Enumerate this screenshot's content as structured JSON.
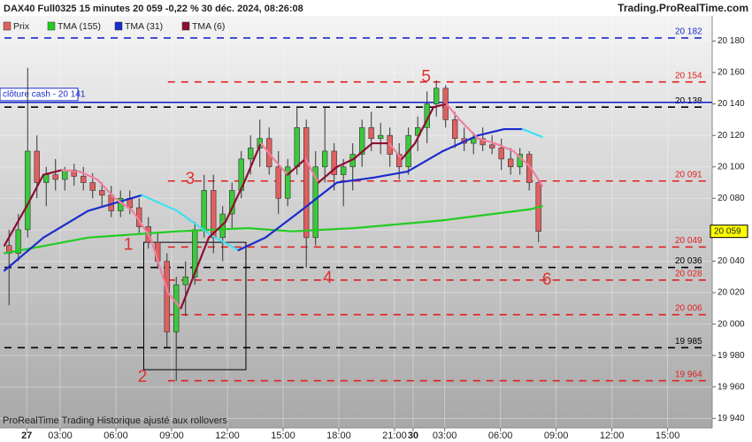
{
  "header": {
    "title": "DAX40 Full0325 15 minutes 20 059 -0,22 % 30 déc. 2024, 08:26:08",
    "brand": "Trading.ProRealTime.com"
  },
  "footer": "ProRealTime Trading Historique ajusté aux rollovers",
  "chart_data": {
    "type": "candlestick",
    "xlim": [
      0,
      38.1
    ],
    "ylim": [
      19934,
      20196
    ],
    "xticks": [
      {
        "value": 1.2,
        "label": "27"
      },
      {
        "value": 3,
        "label": "03:00"
      },
      {
        "value": 6,
        "label": "06:00"
      },
      {
        "value": 9,
        "label": "09:00"
      },
      {
        "value": 12,
        "label": "12:00"
      },
      {
        "value": 15,
        "label": "15:00"
      },
      {
        "value": 18,
        "label": "18:00"
      },
      {
        "value": 21,
        "label": "21:00"
      },
      {
        "value": 22,
        "label": "30"
      },
      {
        "value": 23.7,
        "label": "03:00"
      },
      {
        "value": 26.7,
        "label": "06:00"
      },
      {
        "value": 29.7,
        "label": "09:00"
      },
      {
        "value": 32.7,
        "label": "12:00"
      },
      {
        "value": 35.7,
        "label": "15:00"
      }
    ],
    "yticks": [
      {
        "value": 19940,
        "label": "19 940"
      },
      {
        "value": 19960,
        "label": "19 960"
      },
      {
        "value": 19980,
        "label": "19 980"
      },
      {
        "value": 20000,
        "label": "20 000"
      },
      {
        "value": 20020,
        "label": "20 020"
      },
      {
        "value": 20040,
        "label": "20 040"
      },
      {
        "value": 20060,
        "label": "20 060"
      },
      {
        "value": 20080,
        "label": "20 080"
      },
      {
        "value": 20100,
        "label": "20 100"
      },
      {
        "value": 20120,
        "label": "20 120"
      },
      {
        "value": 20140,
        "label": "20 140"
      },
      {
        "value": 20160,
        "label": "20 160"
      },
      {
        "value": 20180,
        "label": "20 180"
      }
    ],
    "grid": true,
    "candles": {
      "name": "Prix",
      "up_color": "#3cc83c",
      "down_color": "#e06060",
      "x": [
        0.25,
        0.75,
        1.25,
        1.75,
        2.25,
        2.75,
        3.25,
        3.75,
        4.25,
        4.75,
        5.25,
        5.75,
        6.25,
        6.75,
        7.25,
        7.75,
        8.25,
        8.75,
        9.25,
        9.75,
        10.25,
        10.75,
        11.25,
        11.75,
        12.25,
        12.75,
        13.25,
        13.75,
        14.25,
        14.75,
        15.25,
        15.75,
        16.25,
        16.75,
        17.25,
        17.75,
        18.25,
        18.75,
        19.25,
        19.75,
        20.25,
        20.75,
        21.25,
        21.75,
        22.25,
        22.75,
        23.25,
        23.75,
        24.25,
        24.75,
        25.25,
        25.75,
        26.25,
        26.75,
        27.25,
        27.75,
        28.25,
        28.75
      ],
      "open": [
        20050,
        20045,
        20060,
        20110,
        20090,
        20095,
        20092,
        20098,
        20094,
        20090,
        20085,
        20082,
        20072,
        20080,
        20074,
        20062,
        20052,
        20040,
        19995,
        20025,
        20030,
        20060,
        20085,
        20055,
        20070,
        20085,
        20105,
        20112,
        20118,
        20100,
        20080,
        20100,
        20125,
        20055,
        20100,
        20110,
        20095,
        20100,
        20108,
        20125,
        20118,
        20120,
        20108,
        20100,
        20120,
        20125,
        20140,
        20150,
        20130,
        20118,
        20115,
        20118,
        20114,
        20112,
        20105,
        20100,
        20108,
        20090
      ],
      "high": [
        20060,
        20070,
        20163,
        20120,
        20100,
        20105,
        20100,
        20102,
        20100,
        20096,
        20090,
        20088,
        20085,
        20085,
        20080,
        20068,
        20058,
        20045,
        20030,
        20040,
        20065,
        20095,
        20095,
        20075,
        20090,
        20110,
        20120,
        20130,
        20125,
        20110,
        20105,
        20138,
        20130,
        20110,
        20138,
        20115,
        20105,
        20115,
        20130,
        20135,
        20128,
        20125,
        20115,
        20125,
        20132,
        20148,
        20155,
        20152,
        20135,
        20125,
        20122,
        20125,
        20120,
        20118,
        20112,
        20112,
        20110,
        20092
      ],
      "low": [
        20012,
        20040,
        20055,
        20080,
        20075,
        20085,
        20085,
        20088,
        20085,
        20080,
        20075,
        20068,
        20068,
        20070,
        20058,
        20048,
        20035,
        19985,
        19964,
        20005,
        20025,
        20055,
        20045,
        20040,
        20060,
        20080,
        20095,
        20100,
        20095,
        20070,
        20075,
        20095,
        20036,
        20050,
        20090,
        20085,
        20075,
        20085,
        20100,
        20110,
        20108,
        20100,
        20092,
        20095,
        20110,
        20115,
        20132,
        20125,
        20112,
        20110,
        20108,
        20110,
        20108,
        20098,
        20095,
        20095,
        20085,
        20052
      ],
      "close": [
        20045,
        20060,
        20110,
        20090,
        20095,
        20092,
        20098,
        20094,
        20090,
        20085,
        20082,
        20072,
        20080,
        20074,
        20062,
        20052,
        20040,
        19995,
        20025,
        20030,
        20060,
        20085,
        20055,
        20070,
        20085,
        20105,
        20112,
        20118,
        20100,
        20080,
        20100,
        20125,
        20055,
        20100,
        20110,
        20095,
        20100,
        20108,
        20125,
        20118,
        20120,
        20108,
        20100,
        20120,
        20125,
        20140,
        20150,
        20130,
        20118,
        20115,
        20118,
        20114,
        20112,
        20105,
        20100,
        20108,
        20090,
        20059
      ]
    },
    "series": [
      {
        "name": "TMA (155)",
        "color": "#22cc22",
        "falling_color": "#22cc22",
        "x": [
          0,
          4.5,
          9.3,
          13.1,
          15.5,
          18.8,
          23.6,
          28.3,
          28.95
        ],
        "values": [
          20045,
          20055,
          20059,
          20061,
          20059,
          20061,
          20066,
          20073,
          20075
        ]
      },
      {
        "name": "TMA (31)",
        "color": "#1a2ccc",
        "falling_color": "#40e0f0",
        "x": [
          0,
          2.1,
          4.5,
          7.4,
          9.3,
          11.2,
          12.6,
          14.05,
          15.95,
          17.9,
          19.8,
          21.7,
          23.6,
          25.5,
          26.9,
          27.9,
          28.95
        ],
        "values": [
          20034,
          20055,
          20072,
          20082,
          20072,
          20056,
          20047,
          20055,
          20072,
          20090,
          20093,
          20097,
          20110,
          20120,
          20124,
          20124,
          20119
        ]
      },
      {
        "name": "TMA (6)",
        "color": "#8b1030",
        "falling_color": "#f080a0",
        "x": [
          0,
          1.2,
          2.1,
          3.1,
          4.05,
          5,
          5.95,
          6.9,
          7.86,
          8.8,
          9.5,
          10,
          11,
          11.9,
          12.9,
          13.8,
          14.5,
          15.24,
          16.2,
          16.9,
          17.9,
          18.8,
          19.8,
          20.7,
          21.4,
          22.1,
          23.1,
          23.8,
          24.5,
          25.5,
          26.4,
          27.4,
          28.3,
          28.95
        ],
        "values": [
          20050,
          20075,
          20095,
          20098,
          20097,
          20092,
          20080,
          20072,
          20055,
          20020,
          20010,
          20025,
          20055,
          20065,
          20090,
          20115,
          20105,
          20095,
          20105,
          20090,
          20100,
          20105,
          20115,
          20115,
          20105,
          20115,
          20138,
          20140,
          20130,
          20118,
          20115,
          20110,
          20100,
          20088
        ]
      }
    ],
    "levels": [
      {
        "value": 20182,
        "label": "20 182",
        "color": "#1a2ccc",
        "x_start": 0
      },
      {
        "value": 20154,
        "label": "20 154",
        "color": "#e02020",
        "x_start": 8.8
      },
      {
        "value": 20138,
        "label": "20 138",
        "color": "#000000",
        "x_start": 0
      },
      {
        "value": 20091,
        "label": "20 091",
        "color": "#e02020",
        "x_start": 8.8
      },
      {
        "value": 20049,
        "label": "20 049",
        "color": "#e02020",
        "x_start": 8.8
      },
      {
        "value": 20036,
        "label": "20 036",
        "color": "#000000",
        "x_start": 0
      },
      {
        "value": 20028,
        "label": "20 028",
        "color": "#e02020",
        "x_start": 8.8
      },
      {
        "value": 20006,
        "label": "20 006",
        "color": "#e02020",
        "x_start": 8.8
      },
      {
        "value": 19985,
        "label": "19 985",
        "color": "#000000",
        "x_start": 0
      },
      {
        "value": 19964,
        "label": "19 964",
        "color": "#e02020",
        "x_start": 8.8
      }
    ],
    "cash_close": {
      "value": 20141,
      "label": "clôture cash -  20 141",
      "color": "#1a2ccc"
    },
    "last_price": {
      "value": 20059,
      "label": "20 059"
    },
    "highlight_box": {
      "x": [
        7.5,
        13
      ],
      "y": [
        19971,
        20052
      ]
    },
    "annotations": [
      {
        "text": "1",
        "x": 6.67,
        "y": 20050
      },
      {
        "text": "2",
        "x": 7.43,
        "y": 19966
      },
      {
        "text": "3",
        "x": 10,
        "y": 20092
      },
      {
        "text": "4",
        "x": 17.4,
        "y": 20029
      },
      {
        "text": "5",
        "x": 22.7,
        "y": 20157
      },
      {
        "text": "6",
        "x": 29.2,
        "y": 20028
      }
    ]
  }
}
